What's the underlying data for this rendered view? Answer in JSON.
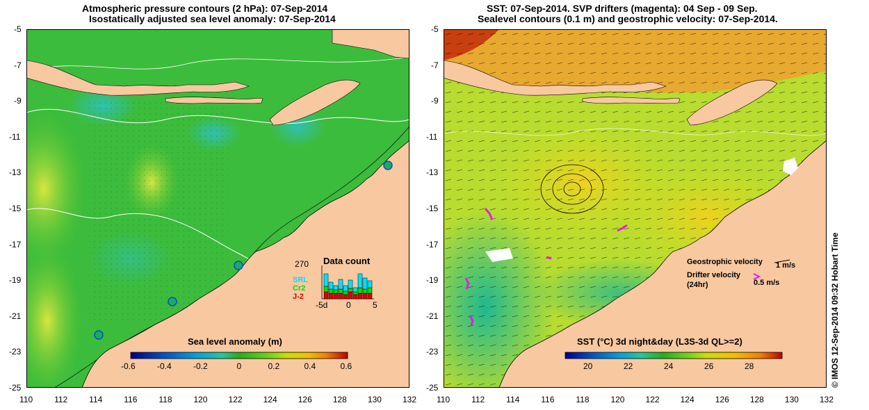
{
  "left_panel": {
    "title_line1": "Atmospheric pressure contours (2 hPa): 07-Sep-2014",
    "title_line2": "Isostatically adjusted sea level anomaly: 07-Sep-2014",
    "colorbar_label": "Sea level anomaly (m)",
    "colorbar_ticks": [
      "-0.6",
      "-0.4",
      "-0.2",
      "0",
      "0.2",
      "0.4",
      "0.6"
    ],
    "colors": [
      "#00008b",
      "#0050c8",
      "#00a0e0",
      "#20c8a0",
      "#20b020",
      "#60d020",
      "#c8e000",
      "#f0c000",
      "#f08000",
      "#c00000"
    ],
    "inset": {
      "title": "Data count",
      "max": "270",
      "legend": [
        "SRL",
        "Cr2",
        "J-2"
      ],
      "legend_colors": [
        "#00e0ff",
        "#00e000",
        "#e00000"
      ],
      "x_ticks": [
        "-5d",
        "0",
        "5"
      ]
    }
  },
  "right_panel": {
    "title_line1": "SST: 07-Sep-2014. SVP drifters (magenta): 04 Sep - 09 Sep.",
    "title_line2": "Sealevel contours (0.1 m) and geostrophic velocity: 07-Sep-2014.",
    "colorbar_label": "SST (°C) 3d night&day (L3S-3d QL>=2)",
    "colorbar_ticks": [
      "20",
      "22",
      "24",
      "26",
      "28"
    ],
    "colors": [
      "#00008b",
      "#0050c8",
      "#00a0e0",
      "#20c8a0",
      "#20b020",
      "#60d020",
      "#c8e000",
      "#f0c000",
      "#f08000",
      "#c00000"
    ],
    "legend": {
      "geostrophic": "Geostrophic velocity",
      "geostrophic_scale": "1 m/s",
      "drifter_line1": "Drifter velocity",
      "drifter_line2": "(24hr)",
      "drifter_scale": "0.5 m/s"
    }
  },
  "axes": {
    "y_ticks": [
      "-5",
      "-7",
      "-9",
      "-11",
      "-13",
      "-15",
      "-17",
      "-19",
      "-21",
      "-23",
      "-25"
    ],
    "x_ticks": [
      "110",
      "112",
      "114",
      "116",
      "118",
      "120",
      "122",
      "124",
      "126",
      "128",
      "130",
      "132"
    ]
  },
  "credit": "© IMOS 12-Sep-2014 09:32 Hobart Time"
}
